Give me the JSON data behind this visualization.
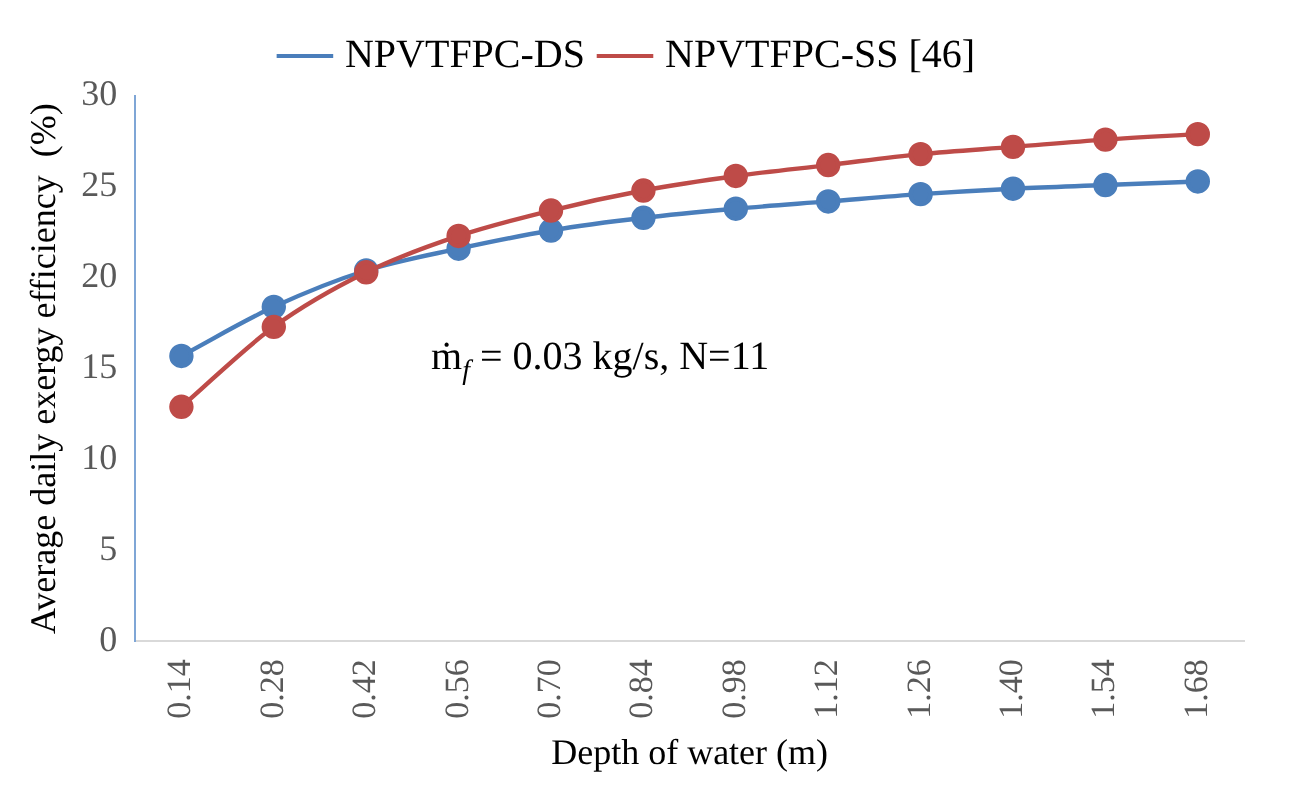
{
  "chart_data": {
    "type": "line",
    "xlabel": "Depth of water (m)",
    "ylabel": "Average daily exergy efficiency  (%)",
    "categories": [
      "0.14",
      "0.28",
      "0.42",
      "0.56",
      "0.70",
      "0.84",
      "0.98",
      "1.12",
      "1.26",
      "1.40",
      "1.54",
      "1.68"
    ],
    "series": [
      {
        "name": "NPVTFPC-DS",
        "color": "#4a7ebb",
        "values": [
          15.7,
          18.4,
          20.4,
          21.6,
          22.6,
          23.3,
          23.8,
          24.2,
          24.6,
          24.9,
          25.1,
          25.3
        ]
      },
      {
        "name": "NPVTFPC-SS [46]",
        "color": "#be4b48",
        "values": [
          12.9,
          17.3,
          20.3,
          22.3,
          23.7,
          24.8,
          25.6,
          26.2,
          26.8,
          27.2,
          27.6,
          27.9
        ]
      }
    ],
    "ylim": [
      0,
      30
    ],
    "yticks": [
      0,
      5,
      10,
      15,
      20,
      25,
      30
    ],
    "grid": false,
    "legend": "top",
    "marker": "circle",
    "line_style": "solid",
    "annotations": [
      "ṁ$_{f}$ = 0.03 kg/s, N=11"
    ]
  }
}
